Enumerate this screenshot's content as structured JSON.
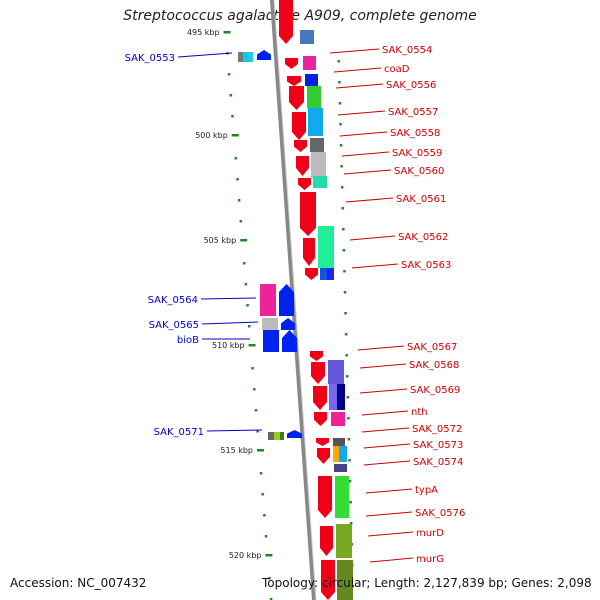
{
  "title": "Streptococcus agalactiae A909, complete genome",
  "footer": {
    "accession": "Accession: NC_007432",
    "topology": "Topology: circular; Length: 2,127,839 bp; Genes: 2,098"
  },
  "colors": {
    "reverse_strand_label": "#0000cc",
    "forward_strand_label": "#cc0000",
    "backbone": "#888888",
    "tick": "#228822"
  },
  "scale_ticks": [
    "495 kbp",
    "500 kbp",
    "505 kbp",
    "510 kbp",
    "515 kbp",
    "520 kbp"
  ],
  "reverse_genes": [
    "SAK_0553",
    "SAK_0564",
    "SAK_0565",
    "bioB",
    "SAK_0571"
  ],
  "forward_genes": [
    "SAK_0554",
    "coaD",
    "SAK_0556",
    "SAK_0557",
    "SAK_0558",
    "SAK_0559",
    "SAK_0560",
    "SAK_0561",
    "SAK_0562",
    "SAK_0563",
    "SAK_0567",
    "SAK_0568",
    "SAK_0569",
    "nth",
    "SAK_0572",
    "SAK_0573",
    "SAK_0574",
    "typA",
    "SAK_0576",
    "murD",
    "murG"
  ]
}
